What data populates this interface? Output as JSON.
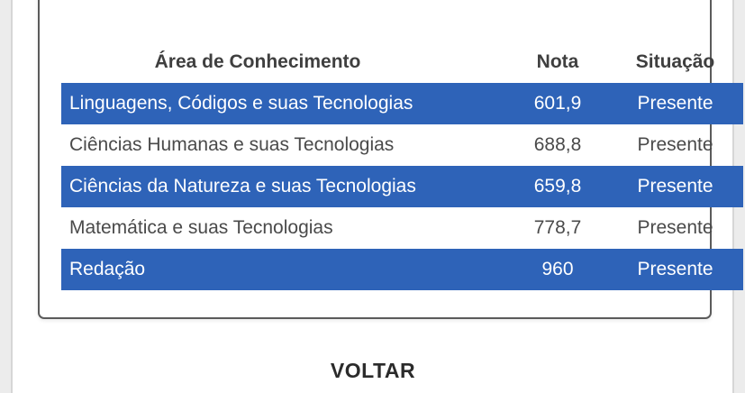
{
  "table": {
    "headers": {
      "area": "Área de Conhecimento",
      "nota": "Nota",
      "situacao": "Situação"
    },
    "rows": [
      {
        "area": "Linguagens, Códigos e suas Tecnologias",
        "nota": "601,9",
        "situacao": "Presente",
        "highlighted": true
      },
      {
        "area": "Ciências Humanas e suas Tecnologias",
        "nota": "688,8",
        "situacao": "Presente",
        "highlighted": false
      },
      {
        "area": "Ciências da Natureza e suas Tecnologias",
        "nota": "659,8",
        "situacao": "Presente",
        "highlighted": true
      },
      {
        "area": "Matemática e suas Tecnologias",
        "nota": "778,7",
        "situacao": "Presente",
        "highlighted": false
      },
      {
        "area": "Redação",
        "nota": "960",
        "situacao": "Presente",
        "highlighted": true
      }
    ]
  },
  "actions": {
    "back_label": "VOLTAR"
  },
  "colors": {
    "highlight_row": "#2e63b8",
    "card_border": "#5b5b5b"
  }
}
